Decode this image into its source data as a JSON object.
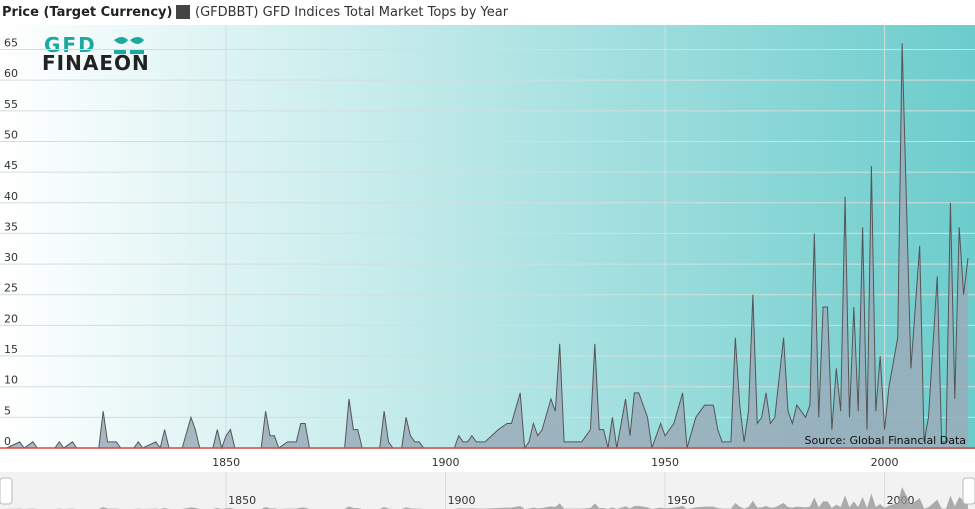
{
  "chart_data": {
    "type": "area",
    "y_axis_title": "Price (Target Currency)",
    "legend_label": "(GFDBBT) GFD Indices Total Market Tops by Year",
    "source": "Source: Global Financial Data",
    "logo": {
      "top": "GFD",
      "bottom": "FINAEON"
    },
    "color": "#9aabba",
    "line_color": "#555555",
    "grid": true,
    "xlim": [
      1798.5,
      2020.6
    ],
    "xticks": [
      1850,
      1900,
      1950,
      2000
    ],
    "ylim": [
      0,
      69
    ],
    "yticks": [
      0,
      5,
      10,
      15,
      20,
      25,
      30,
      35,
      40,
      45,
      50,
      55,
      60,
      65
    ],
    "x": [
      1800,
      1803,
      1804,
      1806,
      1807,
      1811,
      1812,
      1813,
      1815,
      1816,
      1821,
      1822,
      1823,
      1825,
      1826,
      1829,
      1830,
      1831,
      1834,
      1835,
      1836,
      1837,
      1840,
      1842,
      1843,
      1844,
      1847,
      1848,
      1849,
      1850,
      1851,
      1852,
      1858,
      1859,
      1860,
      1861,
      1862,
      1864,
      1866,
      1867,
      1868,
      1869,
      1877,
      1878,
      1879,
      1880,
      1881,
      1885,
      1886,
      1887,
      1888,
      1890,
      1891,
      1892,
      1893,
      1894,
      1895,
      1902,
      1903,
      1904,
      1905,
      1906,
      1907,
      1909,
      1912,
      1914,
      1915,
      1917,
      1918,
      1919,
      1920,
      1921,
      1922,
      1924,
      1925,
      1926,
      1927,
      1931,
      1933,
      1934,
      1935,
      1936,
      1937,
      1938,
      1939,
      1941,
      1942,
      1943,
      1944,
      1946,
      1947,
      1949,
      1950,
      1952,
      1954,
      1955,
      1957,
      1958,
      1959,
      1961,
      1962,
      1963,
      1965,
      1966,
      1967,
      1968,
      1969,
      1970,
      1971,
      1972,
      1973,
      1974,
      1975,
      1977,
      1978,
      1979,
      1980,
      1982,
      1983,
      1984,
      1985,
      1986,
      1987,
      1988,
      1989,
      1990,
      1991,
      1992,
      1993,
      1994,
      1995,
      1996,
      1997,
      1998,
      1999,
      2000,
      2001,
      2003,
      2004,
      2006,
      2008,
      2009,
      2010,
      2012,
      2013,
      2014,
      2015,
      2016,
      2017,
      2018,
      2019
    ],
    "values": [
      0,
      1,
      0,
      1,
      0,
      0,
      1,
      0,
      1,
      0,
      0,
      6,
      1,
      1,
      0,
      0,
      1,
      0,
      1,
      0,
      3,
      0,
      0,
      5,
      3,
      0,
      0,
      3,
      0,
      2,
      3,
      0,
      0,
      6,
      2,
      2,
      0,
      1,
      1,
      4,
      4,
      0,
      0,
      8,
      3,
      3,
      0,
      0,
      6,
      1,
      0,
      0,
      5,
      2,
      1,
      1,
      0,
      0,
      2,
      1,
      1,
      2,
      1,
      1,
      3,
      4,
      4,
      9,
      0,
      1,
      4,
      2,
      3,
      8,
      6,
      17,
      1,
      1,
      3,
      17,
      3,
      3,
      0,
      5,
      0,
      8,
      2,
      9,
      9,
      5,
      0,
      4,
      2,
      4,
      9,
      0,
      5,
      6,
      7,
      7,
      3,
      1,
      1,
      18,
      7,
      1,
      6,
      25,
      4,
      5,
      9,
      4,
      5,
      18,
      6,
      4,
      7,
      5,
      7,
      35,
      5,
      23,
      23,
      3,
      13,
      6,
      41,
      5,
      23,
      6,
      36,
      3,
      46,
      6,
      15,
      3,
      10,
      18,
      66,
      13,
      33,
      1,
      5,
      28,
      1,
      1,
      40,
      8,
      36,
      25,
      31
    ]
  }
}
